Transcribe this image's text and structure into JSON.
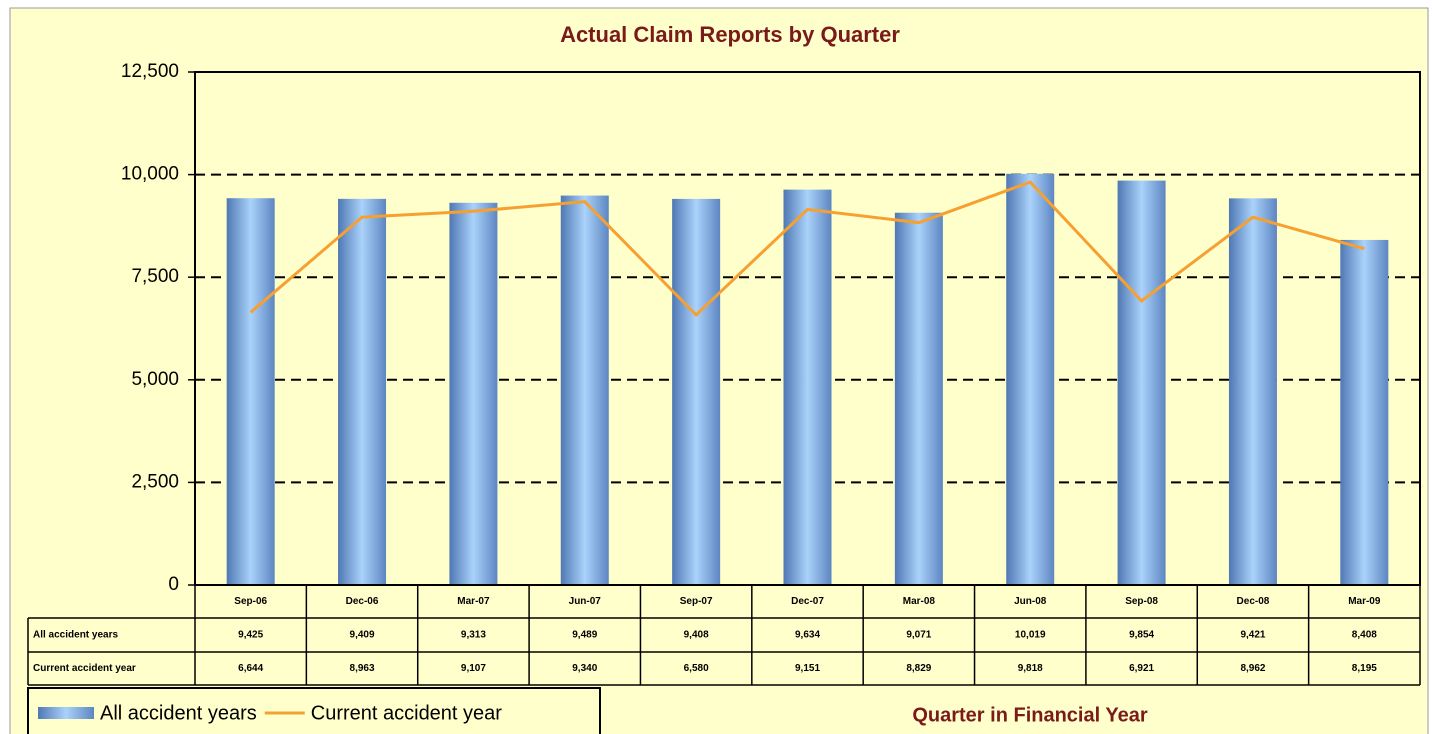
{
  "chart_data": {
    "type": "bar-line",
    "title": "Actual Claim Reports by Quarter",
    "x_label": "Quarter in Financial Year",
    "categories": [
      "Sep-06",
      "Dec-06",
      "Mar-07",
      "Jun-07",
      "Sep-07",
      "Dec-07",
      "Mar-08",
      "Jun-08",
      "Sep-08",
      "Dec-08",
      "Mar-09"
    ],
    "series": [
      {
        "name": "All accident years",
        "type": "bar",
        "color": "#7aa6dc",
        "values": [
          9425,
          9409,
          9313,
          9489,
          9408,
          9634,
          9071,
          10019,
          9854,
          9421,
          8408
        ],
        "value_labels": [
          "9,425",
          "9,409",
          "9,313",
          "9,489",
          "9,408",
          "9,634",
          "9,071",
          "10,019",
          "9,854",
          "9,421",
          "8,408"
        ]
      },
      {
        "name": "Current accident year",
        "type": "line",
        "color": "#f7a032",
        "values": [
          6644,
          8963,
          9107,
          9340,
          6580,
          9151,
          8829,
          9818,
          6921,
          8962,
          8195
        ],
        "value_labels": [
          "6,644",
          "8,963",
          "9,107",
          "9,340",
          "6,580",
          "9,151",
          "8,829",
          "9,818",
          "6,921",
          "8,962",
          "8,195"
        ]
      }
    ],
    "ylim": [
      0,
      12500
    ],
    "yticks": [
      0,
      {
        "value": 2500,
        "label": "2,500"
      },
      {
        "value": 5000,
        "label": "5,000"
      },
      {
        "value": 7500,
        "label": "7,500"
      },
      {
        "value": 10000,
        "label": "10,000"
      },
      {
        "value": 12500,
        "label": "12,500"
      }
    ],
    "grid": true,
    "legend": "bottom-left"
  }
}
